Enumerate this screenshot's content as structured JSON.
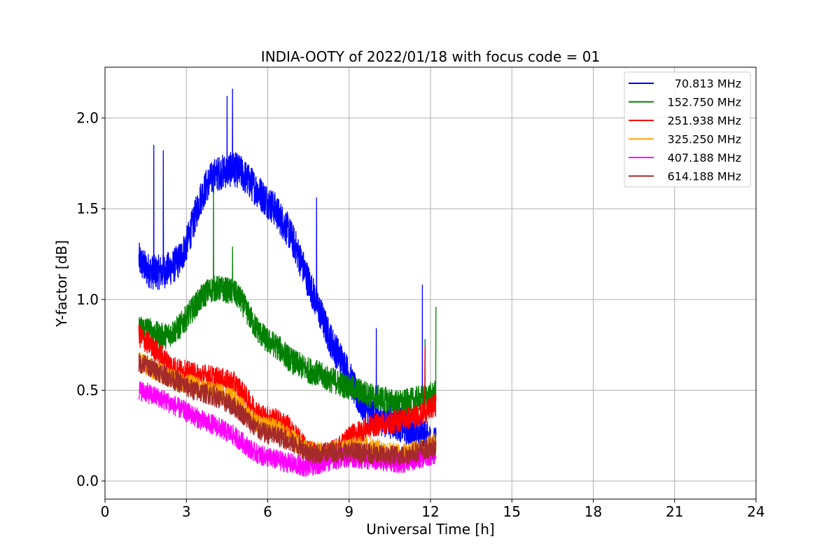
{
  "chart_data": {
    "type": "line",
    "title": "INDIA-OOTY of 2022/01/18 with focus code = 01",
    "xlabel": "Universal Time [h]",
    "ylabel": "Y-factor [dB]",
    "xlim": [
      0,
      24
    ],
    "ylim": [
      -0.1,
      2.28
    ],
    "xticks": [
      "0",
      "3",
      "6",
      "9",
      "12",
      "15",
      "18",
      "21",
      "24"
    ],
    "xtick_values": [
      0,
      3,
      6,
      9,
      12,
      15,
      18,
      21,
      24
    ],
    "yticks": [
      "0.0",
      "0.5",
      "1.0",
      "1.5",
      "2.0"
    ],
    "ytick_values": [
      0.0,
      0.5,
      1.0,
      1.5,
      2.0
    ],
    "grid": true,
    "legend_position": "top-right",
    "x": [
      1.25,
      1.5,
      1.75,
      2.0,
      2.25,
      2.5,
      2.75,
      3.0,
      3.25,
      3.5,
      3.75,
      4.0,
      4.25,
      4.5,
      4.75,
      5.0,
      5.25,
      5.5,
      5.75,
      6.0,
      6.25,
      6.5,
      6.75,
      7.0,
      7.25,
      7.5,
      7.75,
      8.0,
      8.25,
      8.5,
      8.75,
      9.0,
      9.25,
      9.5,
      9.75,
      10.0,
      10.25,
      10.5,
      10.75,
      11.0,
      11.25,
      11.5,
      11.75,
      12.0,
      12.2
    ],
    "series": [
      {
        "name": "70.813 MHz",
        "color": "#0000ff",
        "noise": 0.06,
        "values": [
          1.22,
          1.17,
          1.15,
          1.15,
          1.16,
          1.18,
          1.22,
          1.3,
          1.42,
          1.55,
          1.63,
          1.68,
          1.7,
          1.71,
          1.72,
          1.7,
          1.66,
          1.62,
          1.58,
          1.54,
          1.5,
          1.44,
          1.38,
          1.3,
          1.2,
          1.1,
          1.0,
          0.9,
          0.8,
          0.72,
          0.66,
          0.58,
          0.48,
          0.42,
          0.38,
          0.36,
          0.34,
          0.33,
          0.32,
          0.3,
          0.28,
          0.27,
          0.25,
          0.22,
          0.2
        ],
        "spikes": [
          [
            1.8,
            1.85
          ],
          [
            2.15,
            1.82
          ],
          [
            4.5,
            2.12
          ],
          [
            4.7,
            2.16
          ],
          [
            7.8,
            1.56
          ],
          [
            11.7,
            1.08
          ],
          [
            10.0,
            0.84
          ]
        ]
      },
      {
        "name": "152.750 MHz",
        "color": "#008000",
        "noise": 0.045,
        "values": [
          0.84,
          0.84,
          0.82,
          0.8,
          0.8,
          0.82,
          0.85,
          0.9,
          0.95,
          1.0,
          1.04,
          1.06,
          1.06,
          1.05,
          1.04,
          1.0,
          0.93,
          0.86,
          0.81,
          0.77,
          0.75,
          0.72,
          0.68,
          0.65,
          0.63,
          0.61,
          0.6,
          0.58,
          0.56,
          0.55,
          0.53,
          0.52,
          0.5,
          0.49,
          0.47,
          0.46,
          0.45,
          0.44,
          0.43,
          0.43,
          0.44,
          0.45,
          0.46,
          0.47,
          0.48
        ],
        "spikes": [
          [
            4.0,
            1.65
          ],
          [
            4.7,
            1.29
          ],
          [
            12.2,
            0.96
          ],
          [
            11.8,
            0.78
          ]
        ]
      },
      {
        "name": "251.938 MHz",
        "color": "#ff0000",
        "noise": 0.04,
        "values": [
          0.8,
          0.77,
          0.74,
          0.7,
          0.66,
          0.63,
          0.61,
          0.6,
          0.59,
          0.58,
          0.58,
          0.57,
          0.56,
          0.55,
          0.54,
          0.5,
          0.45,
          0.4,
          0.36,
          0.35,
          0.34,
          0.32,
          0.3,
          0.25,
          0.21,
          0.17,
          0.15,
          0.14,
          0.15,
          0.17,
          0.2,
          0.24,
          0.26,
          0.28,
          0.3,
          0.31,
          0.32,
          0.32,
          0.33,
          0.34,
          0.35,
          0.36,
          0.37,
          0.4,
          0.42
        ],
        "spikes": [
          [
            11.8,
            0.74
          ]
        ]
      },
      {
        "name": "325.250 MHz",
        "color": "#ffa500",
        "noise": 0.035,
        "values": [
          0.66,
          0.64,
          0.62,
          0.6,
          0.58,
          0.56,
          0.55,
          0.54,
          0.53,
          0.51,
          0.5,
          0.49,
          0.48,
          0.47,
          0.45,
          0.41,
          0.37,
          0.33,
          0.3,
          0.3,
          0.29,
          0.27,
          0.25,
          0.22,
          0.19,
          0.17,
          0.16,
          0.16,
          0.16,
          0.17,
          0.18,
          0.18,
          0.19,
          0.19,
          0.19,
          0.18,
          0.17,
          0.16,
          0.15,
          0.15,
          0.16,
          0.17,
          0.18,
          0.2,
          0.22
        ],
        "spikes": []
      },
      {
        "name": "407.188 MHz",
        "color": "#ff00ff",
        "noise": 0.035,
        "values": [
          0.5,
          0.49,
          0.47,
          0.46,
          0.44,
          0.42,
          0.4,
          0.38,
          0.36,
          0.34,
          0.32,
          0.31,
          0.29,
          0.27,
          0.25,
          0.22,
          0.19,
          0.16,
          0.14,
          0.13,
          0.12,
          0.11,
          0.1,
          0.09,
          0.08,
          0.08,
          0.09,
          0.1,
          0.11,
          0.12,
          0.13,
          0.13,
          0.13,
          0.12,
          0.12,
          0.11,
          0.11,
          0.11,
          0.1,
          0.1,
          0.11,
          0.12,
          0.13,
          0.14,
          0.15
        ],
        "spikes": []
      },
      {
        "name": "614.188 MHz",
        "color": "#a52a2a",
        "noise": 0.035,
        "values": [
          0.65,
          0.64,
          0.62,
          0.6,
          0.58,
          0.56,
          0.54,
          0.52,
          0.5,
          0.49,
          0.48,
          0.47,
          0.45,
          0.43,
          0.41,
          0.38,
          0.34,
          0.3,
          0.27,
          0.26,
          0.25,
          0.24,
          0.22,
          0.2,
          0.18,
          0.16,
          0.15,
          0.15,
          0.16,
          0.16,
          0.16,
          0.16,
          0.16,
          0.15,
          0.15,
          0.15,
          0.14,
          0.14,
          0.14,
          0.14,
          0.15,
          0.16,
          0.17,
          0.18,
          0.19
        ],
        "spikes": []
      }
    ]
  }
}
